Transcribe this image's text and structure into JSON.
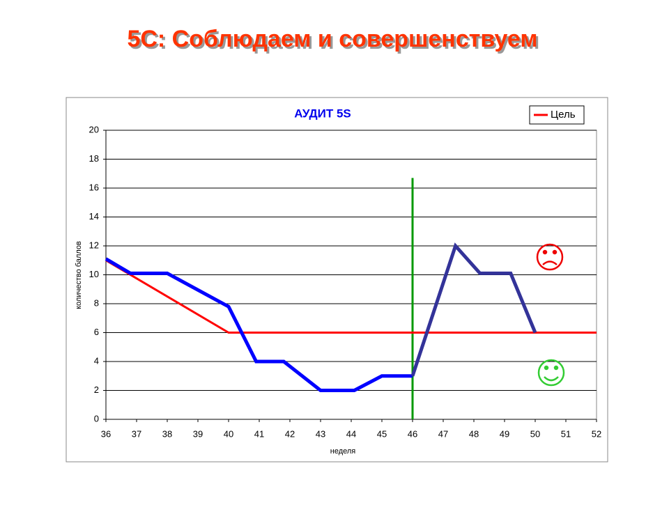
{
  "slide_title": "5С: Соблюдаем и совершенствуем",
  "chart_data": {
    "type": "line",
    "title": "АУДИТ 5S",
    "xlabel": "неделя",
    "ylabel": "количество баллов",
    "xlim": [
      36,
      52
    ],
    "xticks": [
      36,
      37,
      38,
      39,
      40,
      41,
      42,
      43,
      44,
      45,
      46,
      47,
      48,
      49,
      50,
      51,
      52
    ],
    "ylim": [
      0,
      20
    ],
    "yticks": [
      0,
      2,
      4,
      6,
      8,
      10,
      12,
      14,
      16,
      18,
      20
    ],
    "grid": true,
    "legend": "upper right",
    "series": [
      {
        "name": "Цель",
        "color": "#ff0000",
        "line_width": 3,
        "x": [
          36,
          40,
          52
        ],
        "values": [
          11,
          6,
          6
        ]
      },
      {
        "color": "#0000ff",
        "line_width": 5,
        "x": [
          36,
          36.8,
          38,
          40,
          40.9,
          41.8,
          43,
          44.1,
          45,
          46
        ],
        "values": [
          11.1,
          10.1,
          10.1,
          7.8,
          4,
          4,
          2,
          2,
          3,
          3
        ]
      },
      {
        "color": "#333399",
        "line_width": 5,
        "x": [
          46,
          47.4,
          48.2,
          49.2,
          50
        ],
        "values": [
          3,
          12,
          10.1,
          10.1,
          6
        ]
      }
    ],
    "vlines": [
      {
        "x": 46,
        "y": [
          0,
          16.7
        ],
        "color": "#009900"
      }
    ]
  }
}
